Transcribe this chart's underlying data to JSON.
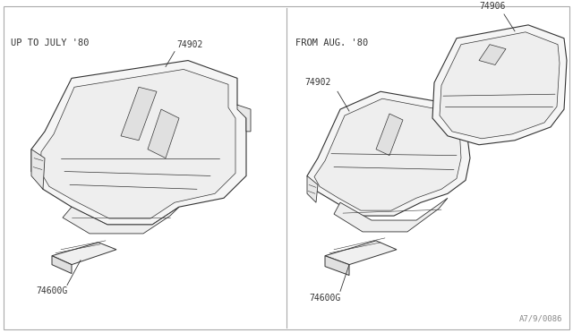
{
  "background_color": "#ffffff",
  "border_color": "#aaaaaa",
  "line_color": "#333333",
  "text_color": "#333333",
  "left_label": "UP TO JULY '80",
  "right_label": "FROM AUG. '80",
  "watermark": "A7/9/0086",
  "font_size_label": 7.5,
  "font_size_part": 7,
  "font_size_watermark": 6.5
}
